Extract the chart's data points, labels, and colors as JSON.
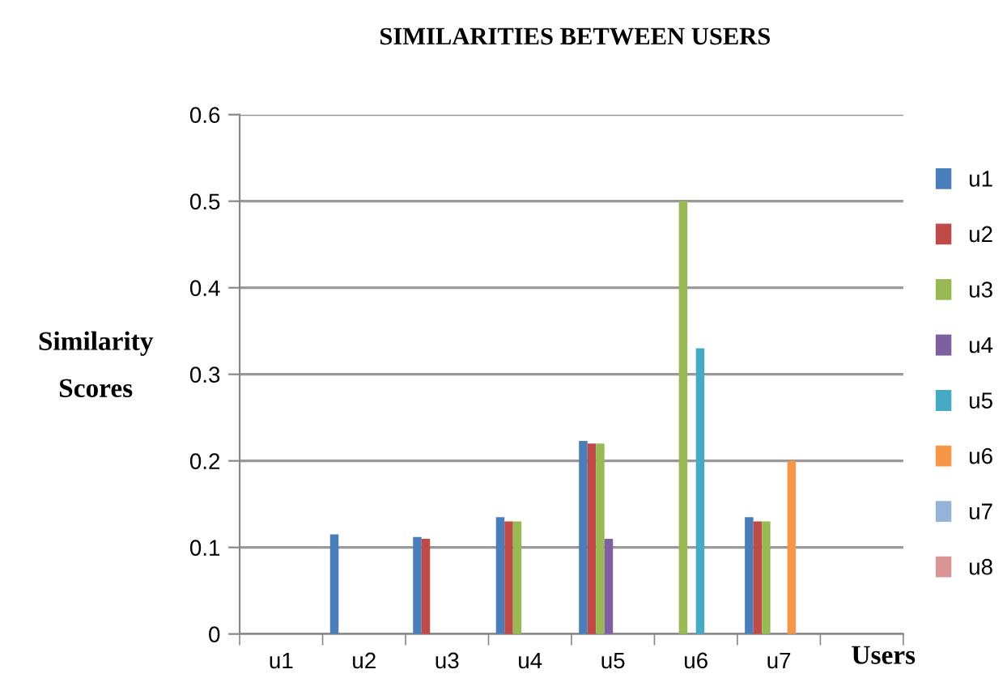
{
  "chart_data": {
    "type": "bar",
    "title": "SIMILARITIES BETWEEN USERS",
    "xlabel": "Users",
    "ylabel": "Similarity\nScores",
    "categories": [
      "u1",
      "u2",
      "u3",
      "u4",
      "u5",
      "u6",
      "u7",
      null
    ],
    "series": [
      {
        "name": "u1",
        "color": "#4a7ebb",
        "values": [
          null,
          0.115,
          0.112,
          0.135,
          0.223,
          null,
          0.135,
          null
        ]
      },
      {
        "name": "u2",
        "color": "#be4b48",
        "values": [
          null,
          null,
          0.11,
          0.13,
          0.22,
          null,
          0.13,
          null
        ]
      },
      {
        "name": "u3",
        "color": "#98b954",
        "values": [
          null,
          null,
          null,
          0.13,
          0.22,
          0.5,
          0.13,
          null
        ]
      },
      {
        "name": "u4",
        "color": "#7d60a0",
        "values": [
          null,
          null,
          null,
          null,
          0.11,
          null,
          null,
          null
        ]
      },
      {
        "name": "u5",
        "color": "#46aac5",
        "values": [
          null,
          null,
          null,
          null,
          null,
          0.33,
          null,
          null
        ]
      },
      {
        "name": "u6",
        "color": "#f79646",
        "values": [
          null,
          null,
          null,
          null,
          null,
          null,
          0.2,
          null
        ]
      },
      {
        "name": "u7",
        "color": "#95b3d7",
        "values": [
          null,
          null,
          null,
          null,
          null,
          null,
          null,
          null
        ]
      },
      {
        "name": "u8",
        "color": "#da9694",
        "values": [
          null,
          null,
          null,
          null,
          null,
          null,
          null,
          null
        ]
      }
    ],
    "ylim": [
      0,
      0.6
    ],
    "yticks": [
      0,
      0.1,
      0.2,
      0.3,
      0.4,
      0.5,
      0.6
    ],
    "grid": "y",
    "legend": "right"
  }
}
